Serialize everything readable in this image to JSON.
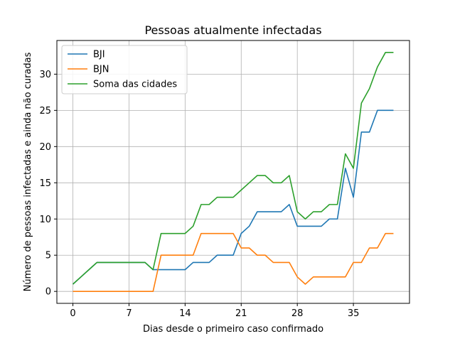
{
  "chart_data": {
    "type": "line",
    "title": "Pessoas atualmente infectadas",
    "xlabel": "Dias desde o primeiro caso confirmado",
    "ylabel": "Número de pessoas infectadas e ainda não curadas",
    "xlim": [
      -2,
      42
    ],
    "ylim": [
      -1.65,
      34.65
    ],
    "xticks": [
      0,
      7,
      14,
      21,
      28,
      35
    ],
    "yticks": [
      0,
      5,
      10,
      15,
      20,
      25,
      30
    ],
    "grid": true,
    "legend_position": "top-left",
    "x": [
      0,
      1,
      2,
      3,
      4,
      5,
      6,
      7,
      8,
      9,
      10,
      11,
      12,
      13,
      14,
      15,
      16,
      17,
      18,
      19,
      20,
      21,
      22,
      23,
      24,
      25,
      26,
      27,
      28,
      29,
      30,
      31,
      32,
      33,
      34,
      35,
      36,
      37,
      38,
      39,
      40
    ],
    "series": [
      {
        "name": "BJI",
        "color": "#1f77b4",
        "values": [
          1,
          2,
          3,
          4,
          4,
          4,
          4,
          4,
          4,
          4,
          3,
          3,
          3,
          3,
          3,
          4,
          4,
          4,
          5,
          5,
          5,
          8,
          9,
          11,
          11,
          11,
          11,
          12,
          9,
          9,
          9,
          9,
          10,
          10,
          17,
          13,
          22,
          22,
          25,
          25,
          25
        ]
      },
      {
        "name": "BJN",
        "color": "#ff7f0e",
        "values": [
          0,
          0,
          0,
          0,
          0,
          0,
          0,
          0,
          0,
          0,
          0,
          5,
          5,
          5,
          5,
          5,
          8,
          8,
          8,
          8,
          8,
          6,
          6,
          5,
          5,
          4,
          4,
          4,
          2,
          1,
          2,
          2,
          2,
          2,
          2,
          4,
          4,
          6,
          6,
          8,
          8
        ]
      },
      {
        "name": "Soma das cidades",
        "color": "#2ca02c",
        "values": [
          1,
          2,
          3,
          4,
          4,
          4,
          4,
          4,
          4,
          4,
          3,
          8,
          8,
          8,
          8,
          9,
          12,
          12,
          13,
          13,
          13,
          14,
          15,
          16,
          16,
          15,
          15,
          16,
          11,
          10,
          11,
          11,
          12,
          12,
          19,
          17,
          26,
          28,
          31,
          33,
          33
        ]
      }
    ]
  }
}
